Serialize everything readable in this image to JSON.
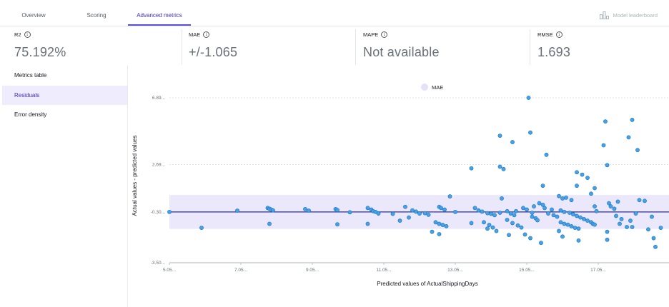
{
  "tabs": [
    {
      "label": "Overview",
      "active": false
    },
    {
      "label": "Scoring",
      "active": false
    },
    {
      "label": "Advanced metrics",
      "active": true
    }
  ],
  "header": {
    "leaderboard_label": "Model leaderboard",
    "leaderboard_icon": "bar-chart-icon"
  },
  "metrics": [
    {
      "name": "R2",
      "value": "75.192%"
    },
    {
      "name": "MAE",
      "value": "+/-1.065"
    },
    {
      "name": "MAPE",
      "value": "Not available"
    },
    {
      "name": "RMSE",
      "value": "1.693"
    }
  ],
  "sidebar": {
    "items": [
      {
        "label": "Metrics table",
        "active": false
      },
      {
        "label": "Residuals",
        "active": true
      },
      {
        "label": "Error density",
        "active": false
      }
    ]
  },
  "colors": {
    "accent": "#5a4fd6",
    "point": "#44a3e8",
    "point_stroke": "#1a6fb5",
    "band": "#ece8fc",
    "zero_line": "#2b2e8c"
  },
  "chart_data": {
    "type": "scatter",
    "legend": {
      "label": "MAE",
      "placement": "top"
    },
    "xlabel": "Predicted values of ActualShippingDays",
    "ylabel": "Actual values - predicted values",
    "xlim": [
      5.05,
      18.9
    ],
    "ylim": [
      -3.5,
      6.89
    ],
    "x_ticks": [
      5.05,
      7.05,
      9.05,
      11.05,
      13.05,
      15.05,
      17.05
    ],
    "x_tick_labels": [
      "5.05...",
      "7.05...",
      "9.05...",
      "11.05...",
      "13.05...",
      "15.05...",
      "17.05..."
    ],
    "y_ticks": [
      -3.5,
      -0.3,
      2.69,
      6.89
    ],
    "y_tick_labels": [
      "-3.50...",
      "-0.30...",
      "2.69...",
      "6.89..."
    ],
    "zero_line": -0.3,
    "band": [
      -1.37,
      0.77
    ],
    "points": [
      [
        5.05,
        -0.3
      ],
      [
        5.95,
        -1.3
      ],
      [
        6.95,
        -0.22
      ],
      [
        7.8,
        -0.05
      ],
      [
        7.85,
        -0.1
      ],
      [
        7.9,
        -0.15
      ],
      [
        7.95,
        -0.2
      ],
      [
        7.85,
        -1.05
      ],
      [
        8.85,
        -0.12
      ],
      [
        8.95,
        -0.22
      ],
      [
        9.7,
        -0.12
      ],
      [
        9.75,
        -0.18
      ],
      [
        9.75,
        -1.08
      ],
      [
        10.1,
        -0.32
      ],
      [
        10.6,
        -0.05
      ],
      [
        10.7,
        -0.15
      ],
      [
        10.75,
        -0.25
      ],
      [
        10.82,
        -0.3
      ],
      [
        10.9,
        -0.4
      ],
      [
        10.6,
        -1.05
      ],
      [
        11.3,
        -0.42
      ],
      [
        11.65,
        0.02
      ],
      [
        11.85,
        -0.2
      ],
      [
        11.95,
        -0.28
      ],
      [
        12.05,
        -0.4
      ],
      [
        12.2,
        -0.38
      ],
      [
        12.3,
        -0.48
      ],
      [
        11.5,
        -0.85
      ],
      [
        11.75,
        -0.65
      ],
      [
        12.4,
        -1.55
      ],
      [
        12.6,
        -1.7
      ],
      [
        12.6,
        0.02
      ],
      [
        12.65,
        -0.05
      ],
      [
        12.75,
        -0.15
      ],
      [
        12.5,
        -0.95
      ],
      [
        12.6,
        -1.05
      ],
      [
        12.7,
        -1.12
      ],
      [
        12.8,
        -1.2
      ],
      [
        12.9,
        0.68
      ],
      [
        13.05,
        -0.3
      ],
      [
        13.5,
        2.45
      ],
      [
        13.5,
        -1.0
      ],
      [
        13.6,
        -0.05
      ],
      [
        13.7,
        -0.2
      ],
      [
        13.8,
        -0.28
      ],
      [
        13.85,
        -0.95
      ],
      [
        13.95,
        -0.38
      ],
      [
        14.05,
        -0.42
      ],
      [
        14.15,
        -0.5
      ],
      [
        14.3,
        -0.35
      ],
      [
        14.0,
        -1.12
      ],
      [
        14.1,
        -1.28
      ],
      [
        14.2,
        -1.5
      ],
      [
        13.95,
        -1.35
      ],
      [
        14.3,
        4.5
      ],
      [
        14.35,
        0.55
      ],
      [
        14.5,
        -0.25
      ],
      [
        14.55,
        -1.75
      ],
      [
        14.6,
        -0.4
      ],
      [
        14.7,
        -0.5
      ],
      [
        14.65,
        4.1
      ],
      [
        14.3,
        2.55
      ],
      [
        14.4,
        2.4
      ],
      [
        14.5,
        -0.8
      ],
      [
        14.75,
        -0.25
      ],
      [
        14.95,
        -0.05
      ],
      [
        15.05,
        -0.15
      ],
      [
        15.2,
        -0.35
      ],
      [
        15.1,
        6.89
      ],
      [
        15.15,
        4.7
      ],
      [
        15.25,
        0.05
      ],
      [
        14.65,
        -1.0
      ],
      [
        14.8,
        -1.15
      ],
      [
        14.9,
        -1.28
      ],
      [
        15.0,
        -1.72
      ],
      [
        15.2,
        -0.6
      ],
      [
        15.3,
        -0.7
      ],
      [
        15.35,
        -0.82
      ],
      [
        15.15,
        -1.95
      ],
      [
        15.45,
        -2.25
      ],
      [
        15.6,
        3.3
      ],
      [
        15.5,
        1.35
      ],
      [
        15.4,
        0.25
      ],
      [
        15.5,
        0.15
      ],
      [
        15.55,
        -0.05
      ],
      [
        15.75,
        -0.15
      ],
      [
        15.65,
        -0.4
      ],
      [
        15.8,
        -0.5
      ],
      [
        15.9,
        -0.6
      ],
      [
        15.95,
        0.7
      ],
      [
        16.05,
        0.55
      ],
      [
        16.15,
        0.6
      ],
      [
        16.3,
        0.45
      ],
      [
        16.0,
        -0.95
      ],
      [
        16.1,
        -1.05
      ],
      [
        16.2,
        -1.1
      ],
      [
        16.3,
        -1.2
      ],
      [
        16.4,
        -1.3
      ],
      [
        16.5,
        -1.35
      ],
      [
        15.95,
        -1.5
      ],
      [
        16.05,
        -1.85
      ],
      [
        16.0,
        -0.2
      ],
      [
        16.1,
        -0.3
      ],
      [
        16.25,
        -0.35
      ],
      [
        16.35,
        -0.45
      ],
      [
        16.45,
        -0.55
      ],
      [
        16.55,
        -0.65
      ],
      [
        16.65,
        -0.75
      ],
      [
        16.75,
        -0.85
      ],
      [
        16.85,
        -0.95
      ],
      [
        16.9,
        -1.05
      ],
      [
        16.95,
        -1.1
      ],
      [
        16.45,
        2.2
      ],
      [
        16.6,
        2.05
      ],
      [
        16.75,
        1.85
      ],
      [
        16.85,
        0.85
      ],
      [
        16.95,
        1.2
      ],
      [
        16.5,
        -2.1
      ],
      [
        16.95,
        0.05
      ],
      [
        17.0,
        -0.25
      ],
      [
        16.45,
        1.35
      ],
      [
        17.2,
        3.9
      ],
      [
        17.25,
        5.4
      ],
      [
        17.3,
        2.65
      ],
      [
        17.35,
        0.25
      ],
      [
        17.4,
        0.05
      ],
      [
        17.5,
        -0.1
      ],
      [
        17.55,
        -0.55
      ],
      [
        17.6,
        0.35
      ],
      [
        17.3,
        -1.55
      ],
      [
        17.3,
        -2.05
      ],
      [
        17.65,
        -1.05
      ],
      [
        17.7,
        -0.75
      ],
      [
        17.85,
        -1.25
      ],
      [
        17.95,
        -0.85
      ],
      [
        17.9,
        4.4
      ],
      [
        18.0,
        5.5
      ],
      [
        18.15,
        3.6
      ],
      [
        18.2,
        0.45
      ],
      [
        18.1,
        -0.4
      ],
      [
        18.0,
        -1.25
      ],
      [
        18.35,
        0.4
      ],
      [
        18.45,
        -1.4
      ],
      [
        18.55,
        -0.6
      ],
      [
        18.6,
        -1.95
      ],
      [
        18.65,
        -2.5
      ],
      [
        18.8,
        -1.3
      ]
    ]
  }
}
